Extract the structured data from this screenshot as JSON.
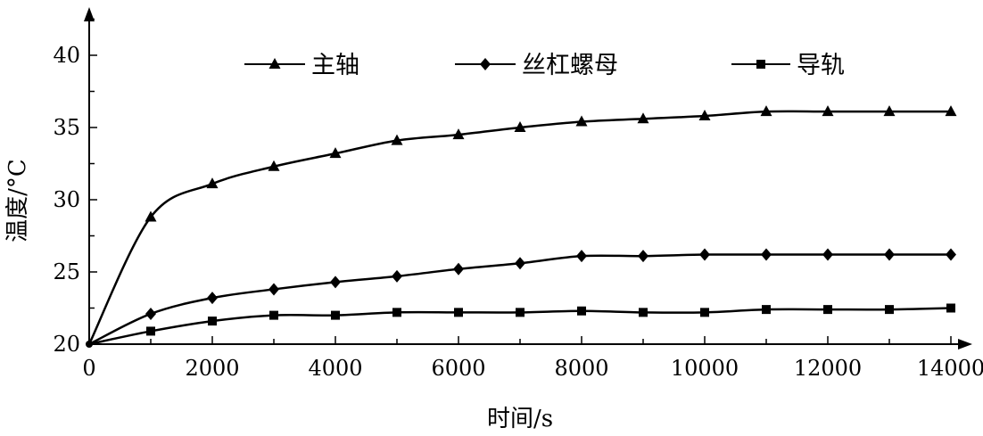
{
  "chart_data": {
    "type": "line",
    "xlabel": "时间/s",
    "ylabel": "温度/°C",
    "xlim": [
      0,
      14000
    ],
    "ylim": [
      20,
      43
    ],
    "xticks": [
      0,
      2000,
      4000,
      6000,
      8000,
      10000,
      12000,
      14000
    ],
    "yticks": [
      20,
      25,
      30,
      35,
      40
    ],
    "grid": false,
    "legend_position": "top",
    "series": [
      {
        "name": "主轴",
        "marker": "triangle",
        "x": [
          0,
          1000,
          2000,
          3000,
          4000,
          5000,
          6000,
          7000,
          8000,
          9000,
          10000,
          11000,
          12000,
          13000,
          14000
        ],
        "values": [
          20,
          28.8,
          31.1,
          32.3,
          33.2,
          34.1,
          34.5,
          35.0,
          35.4,
          35.6,
          35.8,
          36.1,
          36.1,
          36.1,
          36.1
        ]
      },
      {
        "name": "丝杠螺母",
        "marker": "diamond",
        "x": [
          0,
          1000,
          2000,
          3000,
          4000,
          5000,
          6000,
          7000,
          8000,
          9000,
          10000,
          11000,
          12000,
          13000,
          14000
        ],
        "values": [
          20,
          22.1,
          23.2,
          23.8,
          24.3,
          24.7,
          25.2,
          25.6,
          26.1,
          26.1,
          26.2,
          26.2,
          26.2,
          26.2,
          26.2
        ]
      },
      {
        "name": "导轨",
        "marker": "square",
        "x": [
          0,
          1000,
          2000,
          3000,
          4000,
          5000,
          6000,
          7000,
          8000,
          9000,
          10000,
          11000,
          12000,
          13000,
          14000
        ],
        "values": [
          20,
          20.9,
          21.6,
          22.0,
          22.0,
          22.2,
          22.2,
          22.2,
          22.3,
          22.2,
          22.2,
          22.4,
          22.4,
          22.4,
          22.5
        ]
      }
    ]
  }
}
